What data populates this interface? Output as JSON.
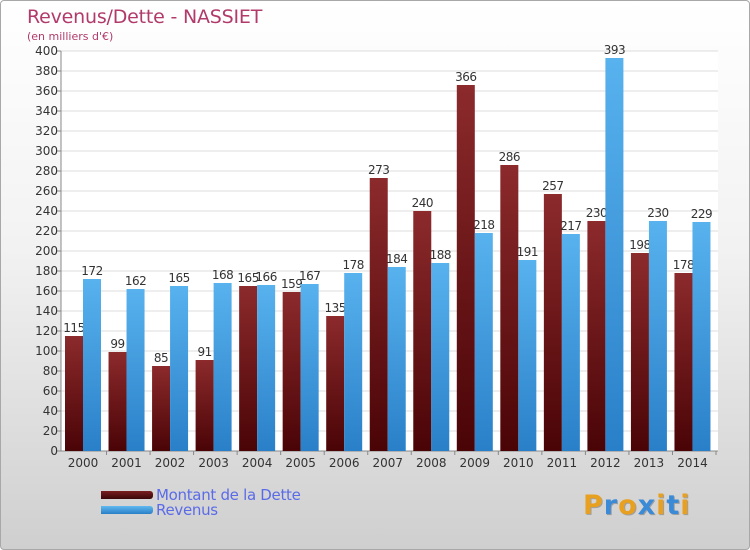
{
  "chart_data": {
    "type": "bar",
    "title": "Revenus/Dette - NASSIET",
    "subtitle": "(en milliers d'€)",
    "categories": [
      "2000",
      "2001",
      "2002",
      "2003",
      "2004",
      "2005",
      "2006",
      "2007",
      "2008",
      "2009",
      "2010",
      "2011",
      "2012",
      "2013",
      "2014"
    ],
    "series": [
      {
        "name": "Montant de la Dette",
        "color": "#7a1e20",
        "values": [
          115,
          99,
          85,
          91,
          165,
          159,
          135,
          273,
          240,
          366,
          286,
          257,
          230,
          198,
          178
        ]
      },
      {
        "name": "Revenus",
        "color": "#3a9ae0",
        "values": [
          172,
          162,
          165,
          168,
          166,
          167,
          178,
          184,
          188,
          218,
          191,
          217,
          393,
          230,
          229
        ]
      }
    ],
    "ylim": [
      0,
      400
    ],
    "yticks": [
      0,
      20,
      40,
      60,
      80,
      100,
      120,
      140,
      160,
      180,
      200,
      220,
      240,
      260,
      280,
      300,
      320,
      340,
      360,
      380,
      400
    ],
    "grid": true,
    "legend_position": "bottom-left"
  },
  "brand": {
    "letters": [
      "P",
      "r",
      "o",
      "x",
      "i",
      "t",
      "i"
    ],
    "colors": [
      "#e8a020",
      "#3a8ad8",
      "#e8a020",
      "#3a8ad8",
      "#e8a020",
      "#3a8ad8",
      "#e8a020"
    ]
  }
}
